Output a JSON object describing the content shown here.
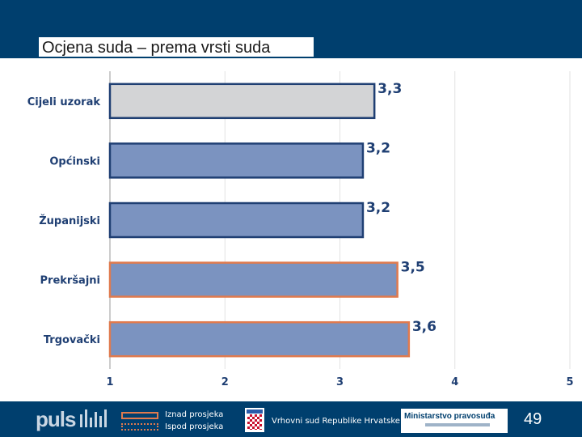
{
  "header": {
    "title": "Ocjena suda – prema vrsti suda"
  },
  "chart_data": {
    "type": "bar",
    "orientation": "horizontal",
    "title": "Ocjena suda – prema vrsti suda",
    "categories": [
      "Cijeli uzorak",
      "Općinski",
      "Županijski",
      "Prekršajni",
      "Trgovački"
    ],
    "values": [
      3.3,
      3.2,
      3.2,
      3.5,
      3.6
    ],
    "value_labels": [
      "3,3",
      "3,2",
      "3,2",
      "3,5",
      "3,6"
    ],
    "highlight": [
      "sample",
      "below",
      "below",
      "above",
      "above"
    ],
    "xlim": [
      1,
      5
    ],
    "xticks": [
      "1",
      "2",
      "3",
      "4",
      "5"
    ],
    "grid": true,
    "colors": {
      "bar": "#7b93c0",
      "sample": "#d3d4d6",
      "border_below": "#1f3f73",
      "border_above": "#e07a4e"
    }
  },
  "footer": {
    "brand": "puls",
    "legend_above": "Iznad prosjeka",
    "legend_below": "Ispod prosjeka",
    "court": "Vrhovni sud Republike Hrvatske",
    "ministry": "Ministarstvo pravosuđa",
    "page_number": "49"
  }
}
